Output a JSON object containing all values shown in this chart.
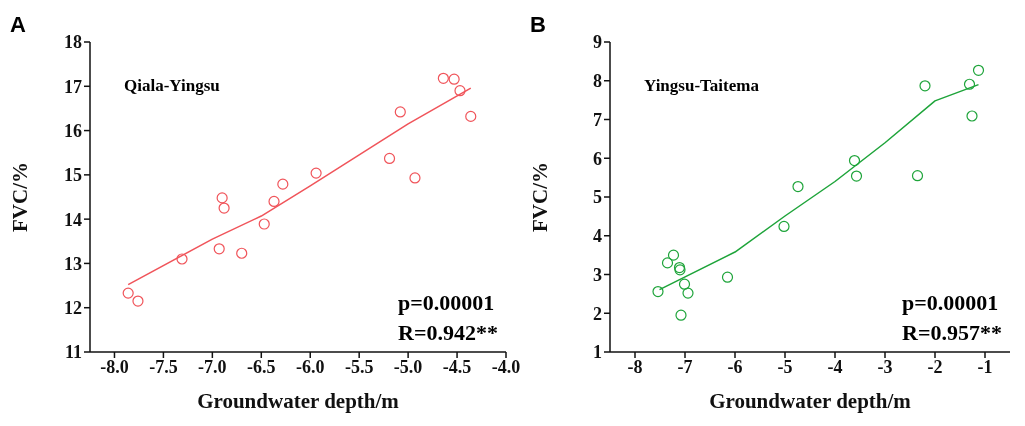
{
  "chart_data": [
    {
      "type": "scatter",
      "title": "A",
      "xlabel": "Groundwater depth/m",
      "ylabel": "FVC/%",
      "xlim": [
        -8.25,
        -4.0
      ],
      "xticks": [
        {
          "value": -8,
          "label": "-8.0"
        },
        {
          "value": -7.5,
          "label": "-7.5"
        },
        {
          "value": -7,
          "label": "-7.0"
        },
        {
          "value": -6.5,
          "label": "-6.5"
        },
        {
          "value": -6,
          "label": "-6.0"
        },
        {
          "value": -5.5,
          "label": "-5.5"
        },
        {
          "value": -5,
          "label": "-5.0"
        },
        {
          "value": -4.5,
          "label": "-4.5"
        },
        {
          "value": -4,
          "label": "-4.0"
        }
      ],
      "ylim": [
        11,
        18
      ],
      "yticks": [
        11,
        12,
        13,
        14,
        15,
        16,
        17,
        18
      ],
      "grid": false,
      "legend": false,
      "annotations": [
        "Qiala-Yingsu",
        "p=0.00001",
        "R=0.942**"
      ],
      "series": [
        {
          "marker": "circle",
          "color": "#f0545a",
          "x": [
            -7.86,
            -7.76,
            -7.31,
            -6.93,
            -6.9,
            -6.88,
            -6.7,
            -6.47,
            -6.37,
            -6.28,
            -5.94,
            -5.19,
            -5.08,
            -4.93,
            -4.64,
            -4.53,
            -4.47,
            -4.36
          ],
          "values": [
            12.33,
            12.15,
            13.1,
            13.33,
            14.48,
            14.25,
            13.23,
            13.89,
            14.4,
            14.79,
            15.04,
            15.37,
            16.42,
            14.93,
            17.18,
            17.16,
            16.9,
            16.32
          ]
        },
        {
          "type": "line",
          "marker": "none",
          "color": "#f0545a",
          "x": [
            -7.86,
            -7.0,
            -6.5,
            -6.0,
            -5.5,
            -5.0,
            -4.36
          ],
          "values": [
            12.52,
            13.55,
            14.07,
            14.75,
            15.45,
            16.15,
            16.96
          ]
        }
      ]
    },
    {
      "type": "scatter",
      "title": "B",
      "xlabel": "Groundwater depth/m",
      "ylabel": "FVC/%",
      "xlim": [
        -8.5,
        -0.5
      ],
      "xticks": [
        -8,
        -7,
        -6,
        -5,
        -4,
        -3,
        -2,
        -1
      ],
      "ylim": [
        1,
        9
      ],
      "yticks": [
        1,
        2,
        3,
        4,
        5,
        6,
        7,
        8,
        9
      ],
      "grid": false,
      "legend": false,
      "annotations": [
        "Yingsu-Taitema",
        "p=0.00001",
        "R=0.957**"
      ],
      "series": [
        {
          "marker": "circle",
          "color": "#1ea43a",
          "x": [
            -7.54,
            -7.35,
            -7.23,
            -7.11,
            -7.1,
            -7.01,
            -6.94,
            -7.08,
            -6.15,
            -5.02,
            -4.74,
            -3.61,
            -3.57,
            -2.35,
            -2.2,
            -1.31,
            -1.26,
            -1.13
          ],
          "values": [
            2.56,
            3.3,
            3.5,
            3.18,
            3.12,
            2.75,
            2.52,
            1.95,
            2.93,
            4.24,
            5.27,
            5.94,
            5.54,
            5.55,
            7.87,
            7.91,
            7.09,
            8.27
          ]
        },
        {
          "type": "line",
          "marker": "none",
          "color": "#1ea43a",
          "x": [
            -7.51,
            -6.0,
            -5.0,
            -4.0,
            -3.0,
            -2.0,
            -1.13
          ],
          "values": [
            2.61,
            3.58,
            4.51,
            5.4,
            6.4,
            7.48,
            7.9
          ]
        }
      ]
    }
  ]
}
